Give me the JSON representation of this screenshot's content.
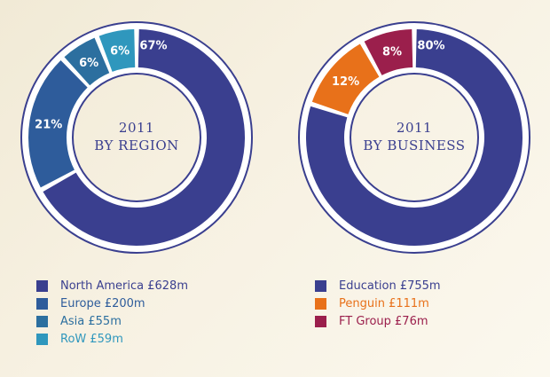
{
  "chart_data": [
    {
      "type": "pie",
      "center_title": [
        "2011",
        "BY REGION"
      ],
      "categories": [
        "North America",
        "Europe",
        "Asia",
        "RoW"
      ],
      "values": [
        67,
        21,
        6,
        6
      ],
      "value_labels": [
        "67%",
        "21%",
        "6%",
        "6%"
      ],
      "colors": [
        "#3a3f8f",
        "#2e5c9b",
        "#2c6f9f",
        "#2f97bd"
      ],
      "legend": [
        {
          "label": "North America £628m",
          "color": "#3a3f8f"
        },
        {
          "label": "Europe £200m",
          "color": "#2e5c9b"
        },
        {
          "label": "Asia £55m",
          "color": "#2c6f9f"
        },
        {
          "label": "RoW £59m",
          "color": "#2f97bd"
        }
      ]
    },
    {
      "type": "pie",
      "center_title": [
        "2011",
        "BY BUSINESS"
      ],
      "categories": [
        "Education",
        "Penguin",
        "FT Group"
      ],
      "values": [
        80,
        12,
        8
      ],
      "value_labels": [
        "80%",
        "12%",
        "8%"
      ],
      "colors": [
        "#3a3f8f",
        "#e8711a",
        "#9b1f4c"
      ],
      "legend": [
        {
          "label": "Education £755m",
          "color": "#3a3f8f"
        },
        {
          "label": "Penguin £111m",
          "color": "#e8711a"
        },
        {
          "label": "FT Group £76m",
          "color": "#9b1f4c"
        }
      ]
    }
  ]
}
